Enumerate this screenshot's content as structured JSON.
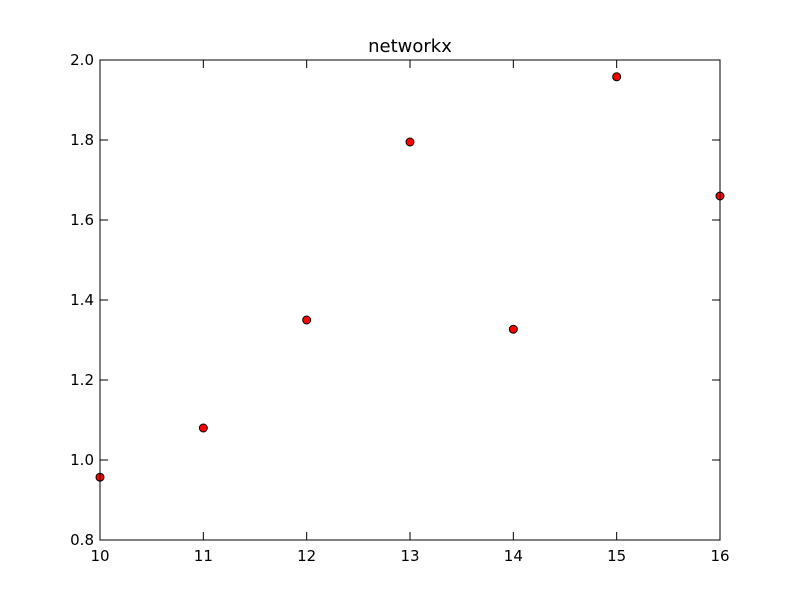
{
  "chart_data": {
    "type": "scatter",
    "title": "networkx",
    "xlabel": "",
    "ylabel": "",
    "x": [
      10,
      11,
      12,
      13,
      14,
      15,
      16
    ],
    "y": [
      0.957,
      1.08,
      1.35,
      1.795,
      1.327,
      1.958,
      1.66
    ],
    "xlim": [
      10,
      16
    ],
    "ylim": [
      0.8,
      2.0
    ],
    "x_ticks": [
      "10",
      "11",
      "12",
      "13",
      "14",
      "15",
      "16"
    ],
    "y_ticks": [
      "0.8",
      "1.0",
      "1.2",
      "1.4",
      "1.6",
      "1.8",
      "2.0"
    ],
    "grid": false,
    "marker": "circle",
    "marker_color": "#ff0000",
    "marker_edge_color": "#000000"
  }
}
